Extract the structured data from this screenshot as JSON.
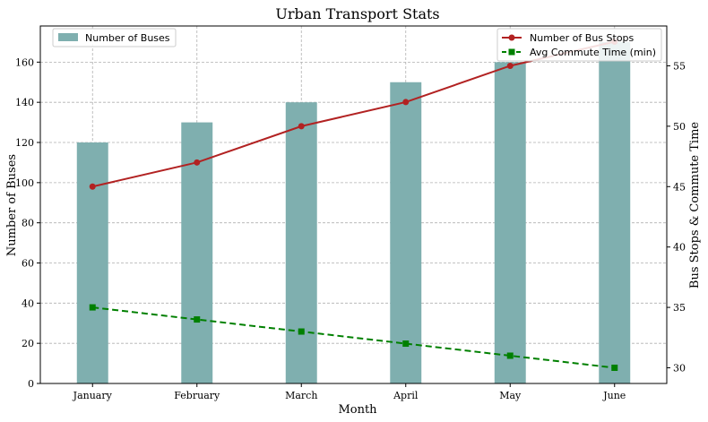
{
  "chart_data": {
    "type": "bar",
    "title": "Urban Transport Stats",
    "xlabel": "Month",
    "ylabel": "Number of Buses",
    "y2label": "Bus Stops & Commute Time",
    "categories": [
      "January",
      "February",
      "March",
      "April",
      "May",
      "June"
    ],
    "ylim": [
      0,
      178
    ],
    "y2lim": [
      28.7,
      58.3
    ],
    "yticks": [
      0,
      20,
      40,
      60,
      80,
      100,
      120,
      140,
      160
    ],
    "y2ticks": [
      30,
      35,
      40,
      45,
      50,
      55
    ],
    "grid": true,
    "series": [
      {
        "name": "Number of Buses",
        "kind": "bar",
        "axis": "left",
        "color": "#7fafaf",
        "values": [
          120,
          130,
          140,
          150,
          160,
          170
        ]
      },
      {
        "name": "Number of Bus Stops",
        "kind": "line",
        "axis": "right",
        "color": "#b22222",
        "marker": "circle",
        "linestyle": "solid",
        "values": [
          45,
          47,
          50,
          52,
          55,
          57
        ]
      },
      {
        "name": "Avg Commute Time (min)",
        "kind": "line",
        "axis": "right",
        "color": "#008000",
        "marker": "square",
        "linestyle": "dashed",
        "values": [
          35,
          34,
          33,
          32,
          31,
          30
        ]
      }
    ],
    "legends": {
      "left": "top-left",
      "right": "top-right"
    }
  }
}
